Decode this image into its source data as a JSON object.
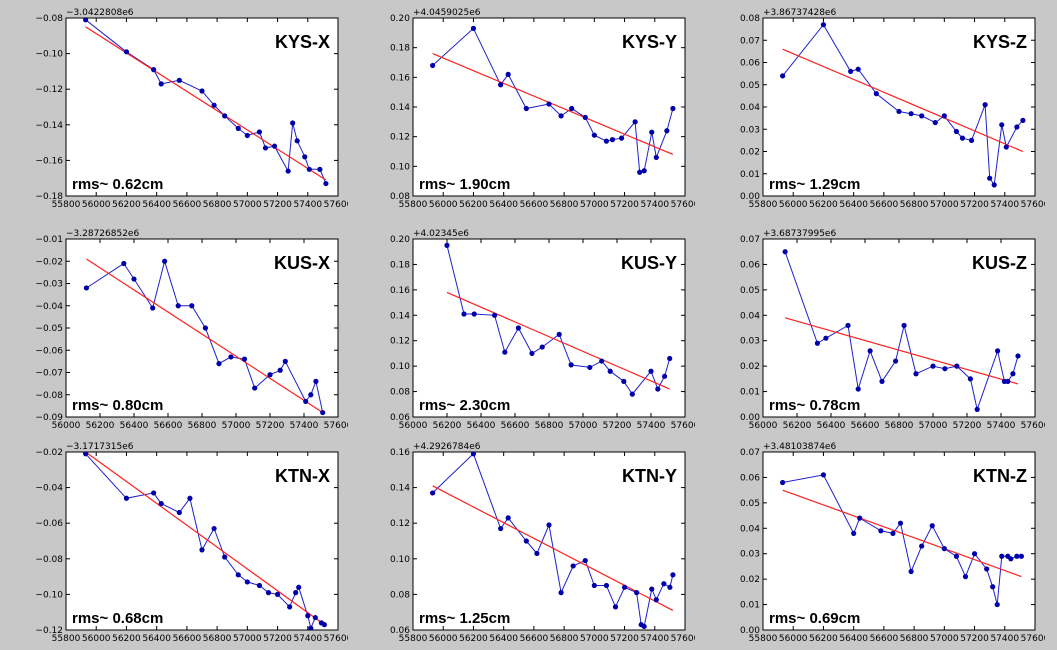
{
  "colors": {
    "series": "#1f1fcc",
    "point": "#0000aa",
    "trend": "#ff2020"
  },
  "chart_data": [
    {
      "type": "line",
      "station": "KYS-X",
      "offset": "−3.0422808e6",
      "rms": "rms~ 0.62cm",
      "xlim": [
        55800,
        57600
      ],
      "ylim": [
        -0.18,
        -0.08
      ],
      "xticks": [
        55800,
        56000,
        56200,
        56400,
        56600,
        56800,
        57000,
        57200,
        57400,
        57600
      ],
      "yticks": [
        -0.18,
        -0.16,
        -0.14,
        -0.12,
        -0.1,
        -0.08
      ],
      "x": [
        55930,
        56200,
        56380,
        56430,
        56550,
        56700,
        56780,
        56850,
        56940,
        57000,
        57080,
        57120,
        57180,
        57270,
        57300,
        57330,
        57380,
        57410,
        57480,
        57520
      ],
      "y": [
        -0.081,
        -0.099,
        -0.109,
        -0.117,
        -0.115,
        -0.121,
        -0.129,
        -0.135,
        -0.142,
        -0.146,
        -0.144,
        -0.153,
        -0.152,
        -0.166,
        -0.139,
        -0.149,
        -0.158,
        -0.165,
        -0.165,
        -0.173
      ],
      "trend": [
        [
          55930,
          -0.085
        ],
        [
          57520,
          -0.171
        ]
      ]
    },
    {
      "type": "line",
      "station": "KYS-Y",
      "offset": "+4.0459025e6",
      "rms": "rms~ 1.90cm",
      "xlim": [
        55800,
        57600
      ],
      "ylim": [
        0.08,
        0.2
      ],
      "xticks": [
        55800,
        56000,
        56200,
        56400,
        56600,
        56800,
        57000,
        57200,
        57400,
        57600
      ],
      "yticks": [
        0.08,
        0.1,
        0.12,
        0.14,
        0.16,
        0.18,
        0.2
      ],
      "x": [
        55930,
        56200,
        56380,
        56430,
        56550,
        56700,
        56780,
        56850,
        56940,
        57000,
        57080,
        57120,
        57180,
        57270,
        57300,
        57330,
        57380,
        57410,
        57480,
        57520
      ],
      "y": [
        0.168,
        0.193,
        0.155,
        0.162,
        0.139,
        0.142,
        0.134,
        0.139,
        0.133,
        0.121,
        0.117,
        0.118,
        0.119,
        0.13,
        0.096,
        0.097,
        0.123,
        0.106,
        0.124,
        0.139
      ],
      "trend": [
        [
          55930,
          0.176
        ],
        [
          57520,
          0.108
        ]
      ]
    },
    {
      "type": "line",
      "station": "KYS-Z",
      "offset": "+3.86737428e6",
      "rms": "rms~ 1.29cm",
      "xlim": [
        55800,
        57600
      ],
      "ylim": [
        0.0,
        0.08
      ],
      "xticks": [
        55800,
        56000,
        56200,
        56400,
        56600,
        56800,
        57000,
        57200,
        57400,
        57600
      ],
      "yticks": [
        0.0,
        0.01,
        0.02,
        0.03,
        0.04,
        0.05,
        0.06,
        0.07,
        0.08
      ],
      "x": [
        55930,
        56200,
        56380,
        56430,
        56550,
        56700,
        56780,
        56850,
        56940,
        57000,
        57080,
        57120,
        57180,
        57270,
        57300,
        57330,
        57380,
        57410,
        57480,
        57520
      ],
      "y": [
        0.054,
        0.077,
        0.056,
        0.057,
        0.046,
        0.038,
        0.037,
        0.036,
        0.033,
        0.036,
        0.029,
        0.026,
        0.025,
        0.041,
        0.008,
        0.005,
        0.032,
        0.022,
        0.031,
        0.034
      ],
      "trend": [
        [
          55930,
          0.066
        ],
        [
          57520,
          0.02
        ]
      ]
    },
    {
      "type": "line",
      "station": "KUS-X",
      "offset": "−3.28726852e6",
      "rms": "rms~ 0.80cm",
      "xlim": [
        56000,
        57600
      ],
      "ylim": [
        -0.09,
        -0.01
      ],
      "xticks": [
        56000,
        56200,
        56400,
        56600,
        56800,
        57000,
        57200,
        57400,
        57600
      ],
      "yticks": [
        -0.09,
        -0.08,
        -0.07,
        -0.06,
        -0.05,
        -0.04,
        -0.03,
        -0.02,
        -0.01
      ],
      "x": [
        56120,
        56340,
        56400,
        56510,
        56580,
        56660,
        56740,
        56820,
        56900,
        56970,
        57050,
        57110,
        57200,
        57260,
        57290,
        57410,
        57440,
        57470,
        57510
      ],
      "y": [
        -0.032,
        -0.021,
        -0.028,
        -0.041,
        -0.02,
        -0.04,
        -0.04,
        -0.05,
        -0.066,
        -0.063,
        -0.064,
        -0.077,
        -0.071,
        -0.069,
        -0.065,
        -0.083,
        -0.08,
        -0.074,
        -0.088
      ],
      "trend": [
        [
          56120,
          -0.019
        ],
        [
          57510,
          -0.088
        ]
      ]
    },
    {
      "type": "line",
      "station": "KUS-Y",
      "offset": "+4.02345e6",
      "rms": "rms~ 2.30cm",
      "xlim": [
        56000,
        57600
      ],
      "ylim": [
        0.06,
        0.2
      ],
      "xticks": [
        56000,
        56200,
        56400,
        56600,
        56800,
        57000,
        57200,
        57400,
        57600
      ],
      "yticks": [
        0.06,
        0.08,
        0.1,
        0.12,
        0.14,
        0.16,
        0.18,
        0.2
      ],
      "x": [
        56200,
        56300,
        56360,
        56480,
        56540,
        56620,
        56700,
        56760,
        56860,
        56930,
        57040,
        57110,
        57160,
        57240,
        57290,
        57400,
        57440,
        57480,
        57510
      ],
      "y": [
        0.195,
        0.141,
        0.141,
        0.14,
        0.111,
        0.13,
        0.11,
        0.115,
        0.125,
        0.101,
        0.099,
        0.104,
        0.096,
        0.088,
        0.078,
        0.096,
        0.082,
        0.092,
        0.106
      ],
      "trend": [
        [
          56200,
          0.158
        ],
        [
          57510,
          0.082
        ]
      ]
    },
    {
      "type": "line",
      "station": "KUS-Z",
      "offset": "+3.68737995e6",
      "rms": "rms~ 0.78cm",
      "xlim": [
        56000,
        57600
      ],
      "ylim": [
        0.0,
        0.07
      ],
      "xticks": [
        56000,
        56200,
        56400,
        56600,
        56800,
        57000,
        57200,
        57400,
        57600
      ],
      "yticks": [
        0.0,
        0.01,
        0.02,
        0.03,
        0.04,
        0.05,
        0.06,
        0.07
      ],
      "x": [
        56130,
        56320,
        56370,
        56500,
        56560,
        56630,
        56700,
        56780,
        56830,
        56900,
        57000,
        57070,
        57140,
        57220,
        57260,
        57380,
        57420,
        57440,
        57470,
        57500
      ],
      "y": [
        0.065,
        0.029,
        0.031,
        0.036,
        0.011,
        0.026,
        0.014,
        0.022,
        0.036,
        0.017,
        0.02,
        0.019,
        0.02,
        0.015,
        0.003,
        0.026,
        0.014,
        0.014,
        0.017,
        0.024
      ],
      "trend": [
        [
          56130,
          0.039
        ],
        [
          57500,
          0.013
        ]
      ]
    },
    {
      "type": "line",
      "station": "KTN-X",
      "offset": "−3.1717315e6",
      "rms": "rms~ 0.68cm",
      "xlim": [
        55800,
        57600
      ],
      "ylim": [
        -0.12,
        -0.02
      ],
      "xticks": [
        55800,
        56000,
        56200,
        56400,
        56600,
        56800,
        57000,
        57200,
        57400,
        57600
      ],
      "yticks": [
        -0.12,
        -0.1,
        -0.08,
        -0.06,
        -0.04,
        -0.02
      ],
      "x": [
        55930,
        56200,
        56380,
        56430,
        56550,
        56620,
        56700,
        56780,
        56850,
        56940,
        57000,
        57080,
        57140,
        57200,
        57280,
        57320,
        57340,
        57400,
        57420,
        57450,
        57490,
        57510
      ],
      "y": [
        -0.021,
        -0.046,
        -0.043,
        -0.049,
        -0.054,
        -0.046,
        -0.075,
        -0.063,
        -0.079,
        -0.089,
        -0.093,
        -0.095,
        -0.099,
        -0.1,
        -0.107,
        -0.099,
        -0.096,
        -0.112,
        -0.119,
        -0.113,
        -0.116,
        -0.117
      ],
      "trend": [
        [
          55930,
          -0.02
        ],
        [
          57510,
          -0.117
        ]
      ]
    },
    {
      "type": "line",
      "station": "KTN-Y",
      "offset": "+4.2926784e6",
      "rms": "rms~ 1.25cm",
      "xlim": [
        55800,
        57600
      ],
      "ylim": [
        0.06,
        0.16
      ],
      "xticks": [
        55800,
        56000,
        56200,
        56400,
        56600,
        56800,
        57000,
        57200,
        57400,
        57600
      ],
      "yticks": [
        0.06,
        0.08,
        0.1,
        0.12,
        0.14,
        0.16
      ],
      "x": [
        55930,
        56200,
        56380,
        56430,
        56550,
        56620,
        56700,
        56780,
        56860,
        56940,
        57000,
        57080,
        57140,
        57200,
        57280,
        57310,
        57330,
        57380,
        57410,
        57460,
        57500,
        57520
      ],
      "y": [
        0.137,
        0.159,
        0.117,
        0.123,
        0.11,
        0.103,
        0.119,
        0.081,
        0.096,
        0.099,
        0.085,
        0.085,
        0.073,
        0.084,
        0.081,
        0.063,
        0.062,
        0.083,
        0.077,
        0.086,
        0.084,
        0.091
      ],
      "trend": [
        [
          55930,
          0.141
        ],
        [
          57520,
          0.071
        ]
      ]
    },
    {
      "type": "line",
      "station": "KTN-Z",
      "offset": "+3.48103874e6",
      "rms": "rms~ 0.69cm",
      "xlim": [
        55800,
        57600
      ],
      "ylim": [
        0.0,
        0.07
      ],
      "xticks": [
        55800,
        56000,
        56200,
        56400,
        56600,
        56800,
        57000,
        57200,
        57400,
        57600
      ],
      "yticks": [
        0.0,
        0.01,
        0.02,
        0.03,
        0.04,
        0.05,
        0.06,
        0.07
      ],
      "x": [
        55930,
        56200,
        56400,
        56440,
        56580,
        56660,
        56710,
        56780,
        56850,
        56920,
        57000,
        57080,
        57140,
        57200,
        57280,
        57320,
        57350,
        57380,
        57420,
        57440,
        57480,
        57510
      ],
      "y": [
        0.058,
        0.061,
        0.038,
        0.044,
        0.039,
        0.038,
        0.042,
        0.023,
        0.033,
        0.041,
        0.032,
        0.029,
        0.021,
        0.03,
        0.024,
        0.017,
        0.01,
        0.029,
        0.029,
        0.028,
        0.029,
        0.029
      ],
      "trend": [
        [
          55930,
          0.055
        ],
        [
          57510,
          0.021
        ]
      ]
    }
  ]
}
